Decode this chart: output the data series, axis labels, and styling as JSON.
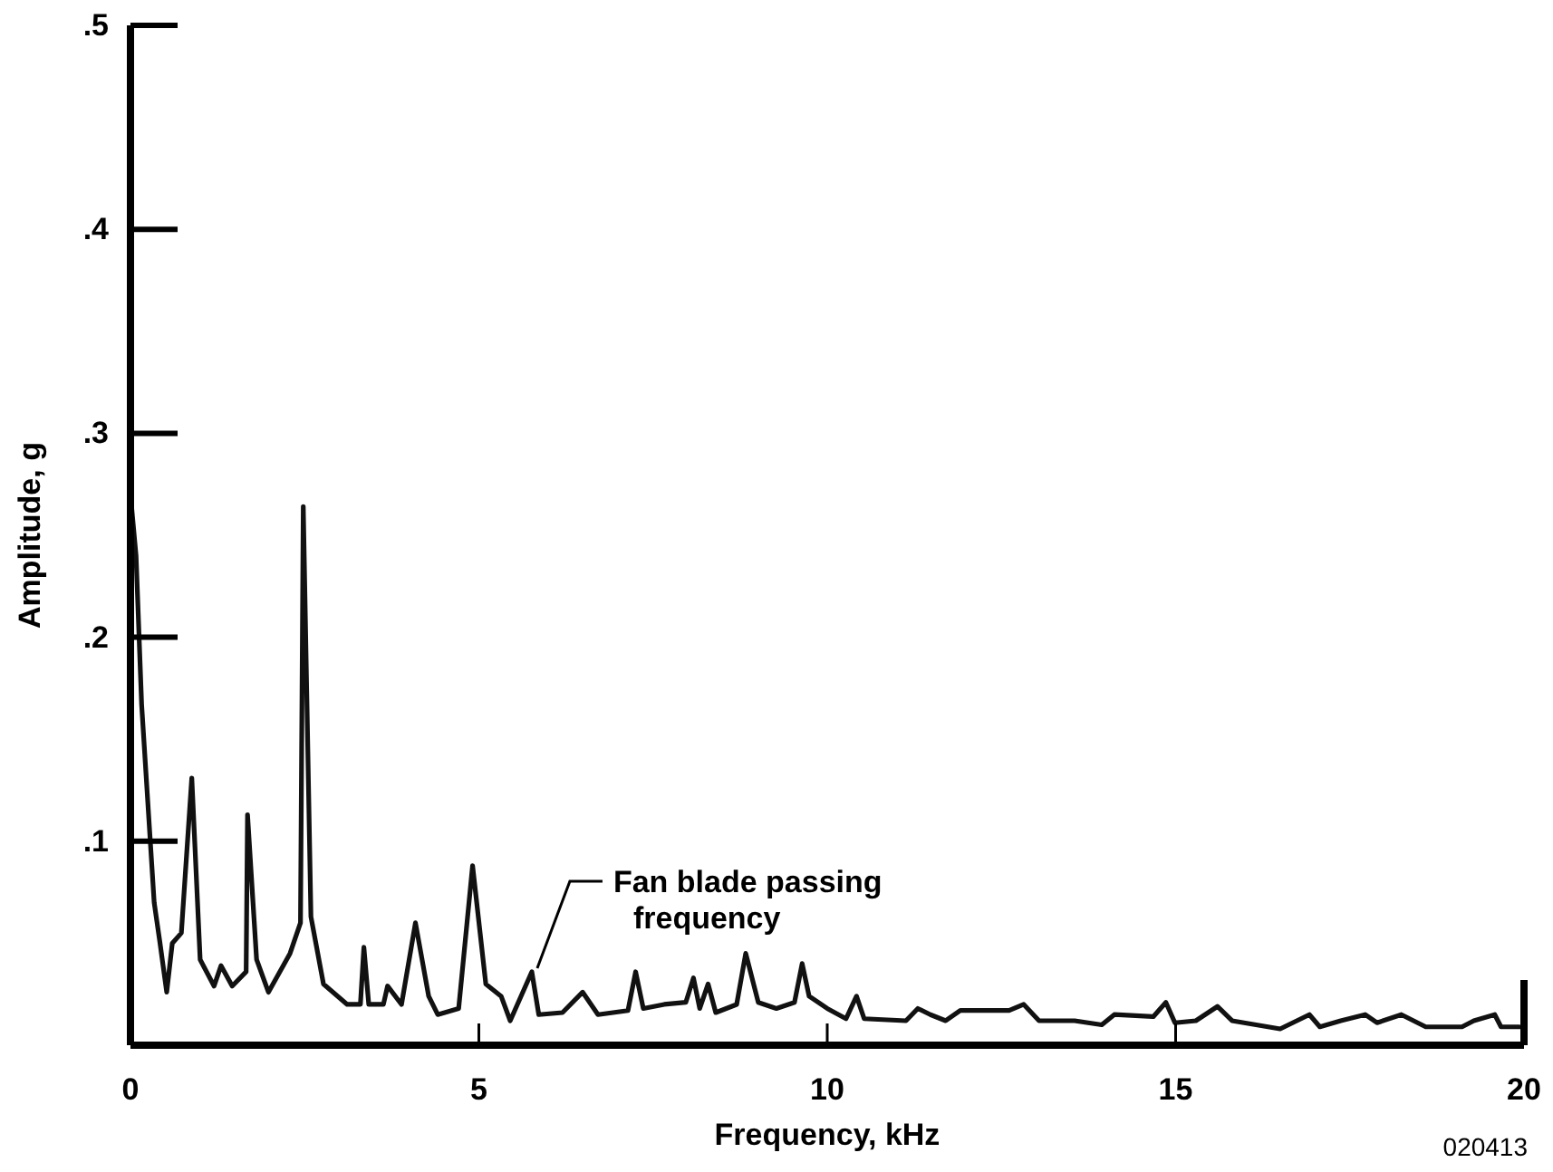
{
  "chart_data": {
    "type": "line",
    "xlabel": "Frequency, kHz",
    "ylabel": "Amplitude, g",
    "xlim": [
      0,
      20
    ],
    "xticks": [
      0,
      5,
      10,
      15,
      20
    ],
    "ylim": [
      0,
      0.5
    ],
    "yticks": [
      {
        "value": 0.1,
        "label": ".1"
      },
      {
        "value": 0.2,
        "label": ".2"
      },
      {
        "value": 0.3,
        "label": ".3"
      },
      {
        "value": 0.4,
        "label": ".4"
      },
      {
        "value": 0.5,
        "label": ".5"
      }
    ],
    "grid": false,
    "line_style": "solid",
    "annotations": [
      {
        "text": "Fan blade passing frequency",
        "x": 5.76,
        "y": 0.036
      },
      "020413"
    ],
    "series": [
      {
        "color": "#111111",
        "x": [
          0,
          0.08,
          0.16,
          0.34,
          0.42,
          0.52,
          0.6,
          0.73,
          0.88,
          1.0,
          1.2,
          1.3,
          1.46,
          1.66,
          1.68,
          1.81,
          1.98,
          2.29,
          2.44,
          2.48,
          2.59,
          2.77,
          3.11,
          3.3,
          3.35,
          3.42,
          3.63,
          3.69,
          3.89,
          4.09,
          4.28,
          4.41,
          4.71,
          4.91,
          5.1,
          5.32,
          5.45,
          5.76,
          5.86,
          6.2,
          6.49,
          6.71,
          7.14,
          7.25,
          7.36,
          7.66,
          7.97,
          8.08,
          8.17,
          8.29,
          8.4,
          8.7,
          8.83,
          9.01,
          9.27,
          9.53,
          9.64,
          9.74,
          10.0,
          10.27,
          10.42,
          10.53,
          11.13,
          11.3,
          11.48,
          11.7,
          11.91,
          12.61,
          12.82,
          13.04,
          13.55,
          13.94,
          14.12,
          14.68,
          14.86,
          14.99,
          15.29,
          15.6,
          15.81,
          16.5,
          16.92,
          17.07,
          17.37,
          17.72,
          17.89,
          18.24,
          18.59,
          19.11,
          19.28,
          19.58,
          19.67,
          19.93
        ],
        "values": [
          0.27,
          0.24,
          0.167,
          0.07,
          0.051,
          0.026,
          0.05,
          0.055,
          0.131,
          0.042,
          0.029,
          0.039,
          0.029,
          0.036,
          0.113,
          0.042,
          0.026,
          0.045,
          0.06,
          0.264,
          0.063,
          0.03,
          0.02,
          0.02,
          0.048,
          0.02,
          0.02,
          0.029,
          0.02,
          0.06,
          0.024,
          0.015,
          0.018,
          0.088,
          0.03,
          0.024,
          0.012,
          0.036,
          0.015,
          0.016,
          0.026,
          0.015,
          0.017,
          0.036,
          0.018,
          0.02,
          0.021,
          0.033,
          0.018,
          0.03,
          0.016,
          0.02,
          0.045,
          0.021,
          0.018,
          0.021,
          0.04,
          0.024,
          0.018,
          0.013,
          0.024,
          0.013,
          0.012,
          0.018,
          0.015,
          0.012,
          0.017,
          0.017,
          0.02,
          0.012,
          0.012,
          0.01,
          0.015,
          0.014,
          0.021,
          0.011,
          0.012,
          0.019,
          0.012,
          0.008,
          0.015,
          0.009,
          0.012,
          0.015,
          0.011,
          0.015,
          0.009,
          0.009,
          0.012,
          0.015,
          0.009,
          0.009
        ]
      }
    ]
  }
}
